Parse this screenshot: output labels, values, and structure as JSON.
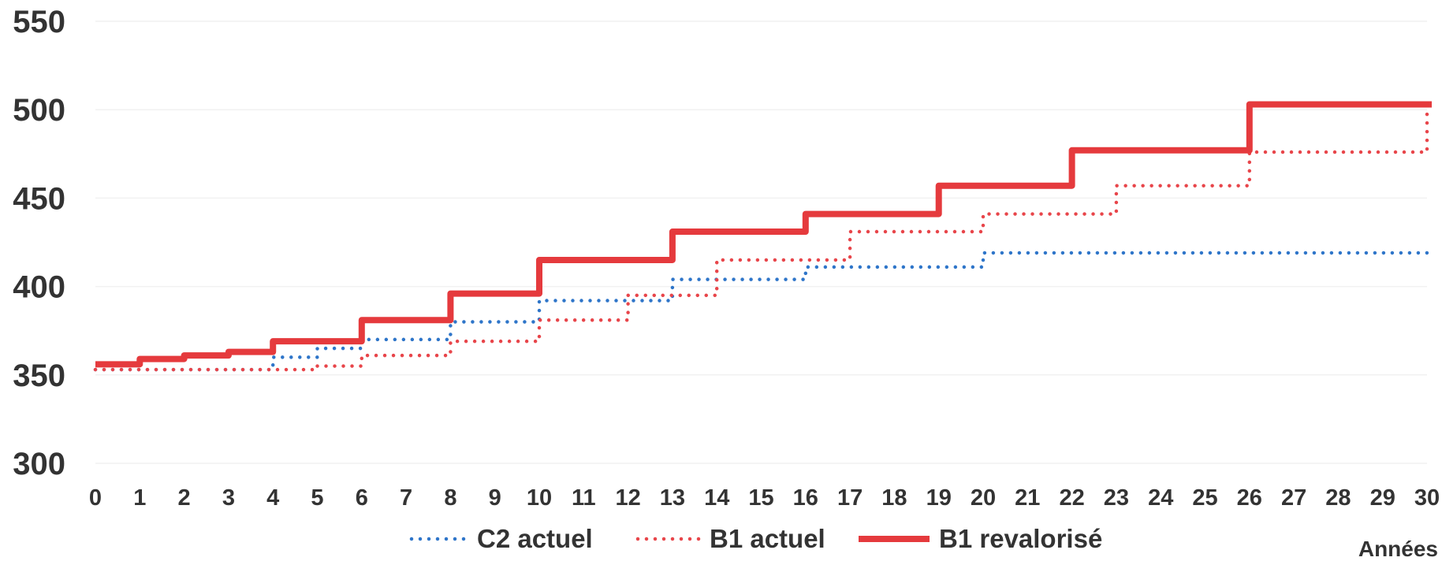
{
  "chart_data": {
    "type": "line",
    "step": true,
    "title": "",
    "xlabel": "Années",
    "ylabel": "",
    "x": [
      0,
      1,
      2,
      3,
      4,
      5,
      6,
      7,
      8,
      9,
      10,
      11,
      12,
      13,
      14,
      15,
      16,
      17,
      18,
      19,
      20,
      21,
      22,
      23,
      24,
      25,
      26,
      27,
      28,
      29,
      30
    ],
    "xlim": [
      0,
      30
    ],
    "ylim": [
      300,
      550
    ],
    "yticks": [
      300,
      350,
      400,
      450,
      500,
      550
    ],
    "grid": true,
    "legend": "bottom",
    "series": [
      {
        "name": "C2 actuel",
        "style": "dotted",
        "color": "#2e75c9",
        "values": [
          353,
          353,
          353,
          353,
          360,
          365,
          370,
          370,
          380,
          380,
          392,
          392,
          392,
          404,
          404,
          404,
          411,
          411,
          411,
          411,
          419,
          419,
          419,
          419,
          419,
          419,
          419,
          419,
          419,
          419,
          419
        ]
      },
      {
        "name": "B1 actuel",
        "style": "dotted",
        "color": "#e8454a",
        "values": [
          353,
          353,
          353,
          353,
          353,
          355,
          361,
          361,
          369,
          369,
          381,
          381,
          395,
          395,
          415,
          415,
          415,
          431,
          431,
          431,
          441,
          441,
          441,
          457,
          457,
          457,
          476,
          476,
          476,
          476,
          503
        ]
      },
      {
        "name": "B1 revalorisé",
        "style": "solid",
        "color": "#e53a3d",
        "values": [
          356,
          359,
          361,
          363,
          369,
          369,
          381,
          381,
          396,
          396,
          415,
          415,
          415,
          431,
          431,
          431,
          441,
          441,
          441,
          457,
          457,
          457,
          477,
          477,
          477,
          477,
          503,
          503,
          503,
          503,
          503
        ]
      }
    ]
  }
}
